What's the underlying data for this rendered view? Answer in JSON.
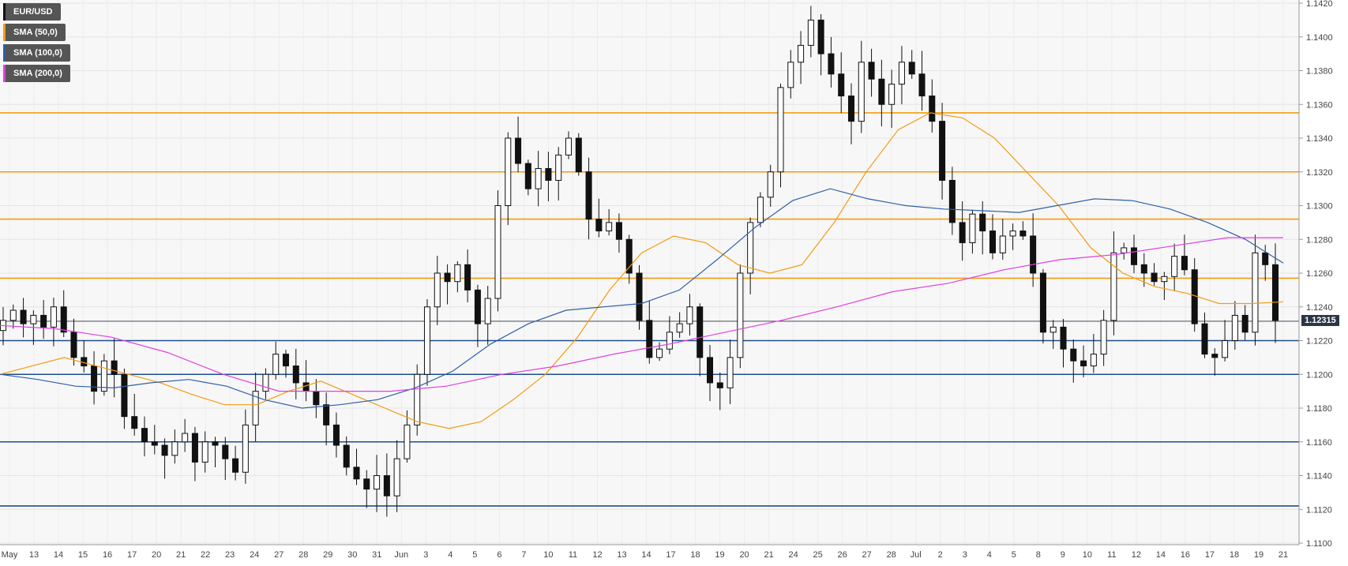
{
  "chart_data": {
    "type": "candlestick",
    "symbol": "EUR/USD",
    "legend": [
      {
        "label": "EUR/USD",
        "color": "#111111"
      },
      {
        "label": "SMA (50,0)",
        "color": "#f39c12"
      },
      {
        "label": "SMA (100,0)",
        "color": "#2e5fa8"
      },
      {
        "label": "SMA (200,0)",
        "color": "#e040e0"
      }
    ],
    "ylim": [
      1.11,
      1.142
    ],
    "yticks": [
      "1.1420",
      "1.1400",
      "1.1380",
      "1.1360",
      "1.1340",
      "1.1320",
      "1.1300",
      "1.1280",
      "1.1260",
      "1.1240",
      "1.1220",
      "1.1200",
      "1.1180",
      "1.1160",
      "1.1140",
      "1.1120",
      "1.1100"
    ],
    "xlabels": [
      "May",
      "13",
      "14",
      "15",
      "16",
      "17",
      "20",
      "21",
      "22",
      "23",
      "24",
      "27",
      "28",
      "29",
      "30",
      "31",
      "Jun",
      "3",
      "4",
      "5",
      "6",
      "7",
      "10",
      "11",
      "12",
      "13",
      "14",
      "17",
      "18",
      "19",
      "20",
      "21",
      "24",
      "25",
      "26",
      "27",
      "28",
      "Jul",
      "2",
      "3",
      "4",
      "5",
      "8",
      "9",
      "10",
      "11",
      "12",
      "14",
      "16",
      "17",
      "18",
      "19",
      "21"
    ],
    "current_price": "1.12315",
    "horizontal_levels": [
      {
        "value": 1.1355,
        "color": "#f39c12"
      },
      {
        "value": 1.132,
        "color": "#f39c12"
      },
      {
        "value": 1.1292,
        "color": "#f39c12"
      },
      {
        "value": 1.1257,
        "color": "#f39c12"
      },
      {
        "value": 1.122,
        "color": "#1f4e8c"
      },
      {
        "value": 1.12,
        "color": "#1f4e8c"
      },
      {
        "value": 1.116,
        "color": "#1f4e8c"
      },
      {
        "value": 1.1122,
        "color": "#1f4e8c"
      }
    ],
    "close_series": [
      1.1232,
      1.1238,
      1.123,
      1.1235,
      1.1228,
      1.124,
      1.1225,
      1.121,
      1.1205,
      1.119,
      1.1208,
      1.12,
      1.1175,
      1.1168,
      1.116,
      1.1158,
      1.1152,
      1.116,
      1.1165,
      1.1148,
      1.116,
      1.1158,
      1.115,
      1.1142,
      1.117,
      1.119,
      1.12,
      1.1212,
      1.1205,
      1.1195,
      1.119,
      1.1182,
      1.117,
      1.1158,
      1.1145,
      1.1138,
      1.1132,
      1.114,
      1.1128,
      1.115,
      1.117,
      1.12,
      1.124,
      1.126,
      1.1255,
      1.1265,
      1.125,
      1.123,
      1.1245,
      1.13,
      1.134,
      1.1325,
      1.131,
      1.1322,
      1.1315,
      1.133,
      1.134,
      1.132,
      1.1292,
      1.1285,
      1.129,
      1.128,
      1.126,
      1.1232,
      1.121,
      1.1215,
      1.1225,
      1.123,
      1.124,
      1.121,
      1.1195,
      1.1192,
      1.121,
      1.126,
      1.129,
      1.1305,
      1.132,
      1.137,
      1.1385,
      1.1395,
      1.141,
      1.139,
      1.1378,
      1.1365,
      1.135,
      1.1385,
      1.1375,
      1.136,
      1.1372,
      1.1385,
      1.1378,
      1.1365,
      1.135,
      1.1315,
      1.129,
      1.1278,
      1.1295,
      1.1285,
      1.1272,
      1.1282,
      1.1285,
      1.1282,
      1.126,
      1.1225,
      1.1228,
      1.1215,
      1.1208,
      1.1205,
      1.1212,
      1.1232,
      1.1272,
      1.1275,
      1.1265,
      1.126,
      1.1255,
      1.1258,
      1.127,
      1.1262,
      1.123,
      1.1212,
      1.121,
      1.122,
      1.1235,
      1.1225,
      1.1272,
      1.1265,
      1.1232
    ],
    "sma50": [
      1.12,
      1.1205,
      1.121,
      1.1205,
      1.12,
      1.1195,
      1.1188,
      1.1182,
      1.1182,
      1.119,
      1.1196,
      1.1188,
      1.118,
      1.1172,
      1.1168,
      1.1172,
      1.1185,
      1.12,
      1.1222,
      1.125,
      1.1272,
      1.1282,
      1.1278,
      1.1265,
      1.126,
      1.1265,
      1.129,
      1.132,
      1.1345,
      1.1355,
      1.1352,
      1.134,
      1.132,
      1.13,
      1.1275,
      1.126,
      1.1252,
      1.1248,
      1.1242,
      1.1242,
      1.1243
    ],
    "sma100": [
      1.12,
      1.1197,
      1.1193,
      1.1192,
      1.1195,
      1.1197,
      1.1193,
      1.1185,
      1.118,
      1.1182,
      1.1185,
      1.1192,
      1.1202,
      1.1218,
      1.123,
      1.1238,
      1.124,
      1.1242,
      1.125,
      1.1268,
      1.1287,
      1.1303,
      1.131,
      1.1304,
      1.13,
      1.1298,
      1.1297,
      1.1296,
      1.13,
      1.1304,
      1.1303,
      1.1298,
      1.129,
      1.128,
      1.1266
    ],
    "sma200": [
      1.1229,
      1.1227,
      1.1222,
      1.1213,
      1.12,
      1.119,
      1.119,
      1.119,
      1.1193,
      1.12,
      1.1205,
      1.1212,
      1.1218,
      1.1225,
      1.1232,
      1.124,
      1.1249,
      1.1254,
      1.1262,
      1.1268,
      1.1271,
      1.1276,
      1.1281,
      1.1281
    ]
  }
}
